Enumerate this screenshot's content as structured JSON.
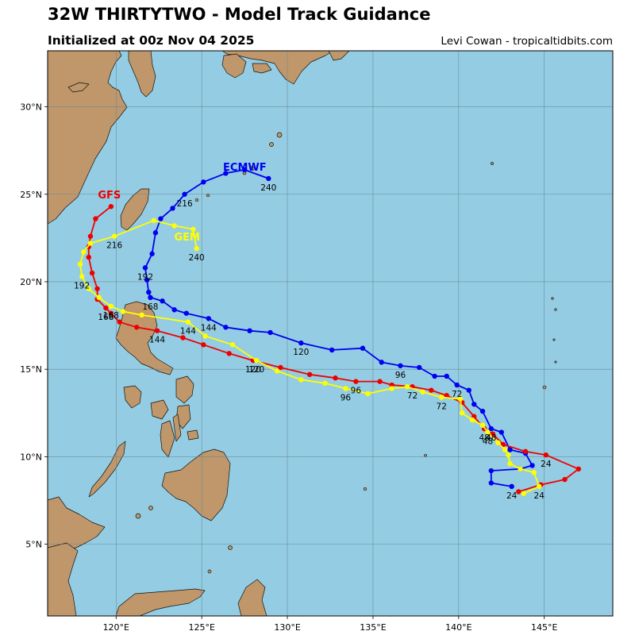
{
  "header": {
    "title": "32W THIRTYTWO - Model Track Guidance",
    "subtitle": "Initialized at 00z Nov 04 2025",
    "credit": "Levi Cowan - tropicaltidbits.com"
  },
  "colors": {
    "ocean": "#94cde3",
    "land": "#bf976b",
    "grid": "#6d8a9a",
    "ecmwf": "#0000ee",
    "gfs": "#ee0000",
    "gem": "#ffff00"
  },
  "axes": {
    "lon_labels": [
      "120°E",
      "125°E",
      "130°E",
      "135°E",
      "140°E",
      "145°E"
    ],
    "lat_labels": [
      "5°N",
      "10°N",
      "15°N",
      "20°N",
      "25°N",
      "30°N"
    ]
  },
  "models": [
    {
      "name": "ECMWF",
      "label": "ECMWF",
      "color": "#0000ee",
      "track": [
        [
          143.1,
          8.3
        ],
        [
          141.9,
          8.5
        ],
        [
          141.9,
          9.2
        ],
        [
          143.6,
          9.3
        ],
        [
          144.3,
          9.5
        ],
        [
          143.9,
          10.2
        ],
        [
          143.0,
          10.4
        ],
        [
          142.5,
          11.4
        ],
        [
          141.9,
          11.6
        ],
        [
          141.4,
          12.6
        ],
        [
          140.9,
          13.0
        ],
        [
          140.6,
          13.8
        ],
        [
          139.9,
          14.1
        ],
        [
          139.3,
          14.6
        ],
        [
          138.6,
          14.6
        ],
        [
          137.7,
          15.1
        ],
        [
          136.6,
          15.2
        ],
        [
          135.5,
          15.4
        ],
        [
          134.4,
          16.2
        ],
        [
          132.6,
          16.1
        ],
        [
          130.8,
          16.5
        ],
        [
          129.0,
          17.1
        ],
        [
          127.8,
          17.2
        ],
        [
          126.4,
          17.4
        ],
        [
          125.4,
          17.9
        ],
        [
          124.1,
          18.2
        ],
        [
          123.4,
          18.4
        ],
        [
          122.7,
          18.9
        ],
        [
          122.0,
          19.1
        ],
        [
          121.9,
          19.4
        ],
        [
          121.8,
          20.1
        ],
        [
          121.7,
          20.8
        ],
        [
          122.1,
          21.6
        ],
        [
          122.3,
          22.8
        ],
        [
          122.6,
          23.6
        ],
        [
          123.3,
          24.2
        ],
        [
          124.0,
          25.0
        ],
        [
          125.1,
          25.7
        ],
        [
          126.4,
          26.2
        ],
        [
          127.5,
          26.4
        ],
        [
          128.9,
          25.9
        ]
      ],
      "hour_labels": [
        {
          "text": "24",
          "lon": 143.1,
          "lat": 8.3
        },
        {
          "text": "48",
          "lon": 141.9,
          "lat": 11.6
        },
        {
          "text": "72",
          "lon": 139.9,
          "lat": 14.1
        },
        {
          "text": "96",
          "lon": 136.6,
          "lat": 15.2
        },
        {
          "text": "120",
          "lon": 130.8,
          "lat": 16.5
        },
        {
          "text": "144",
          "lon": 125.4,
          "lat": 17.9
        },
        {
          "text": "168",
          "lon": 122.0,
          "lat": 19.1
        },
        {
          "text": "192",
          "lon": 121.7,
          "lat": 20.8
        },
        {
          "text": "216",
          "lon": 124.0,
          "lat": 25.0
        },
        {
          "text": "240",
          "lon": 128.9,
          "lat": 25.9
        }
      ]
    },
    {
      "name": "GFS",
      "label": "GFS",
      "color": "#ee0000",
      "track": [
        [
          143.5,
          8.0
        ],
        [
          144.8,
          8.4
        ],
        [
          146.2,
          8.7
        ],
        [
          147.0,
          9.3
        ],
        [
          145.1,
          10.1
        ],
        [
          143.9,
          10.3
        ],
        [
          142.6,
          10.7
        ],
        [
          142.0,
          11.3
        ],
        [
          141.5,
          11.6
        ],
        [
          140.9,
          12.3
        ],
        [
          140.2,
          13.1
        ],
        [
          139.3,
          13.5
        ],
        [
          138.4,
          13.8
        ],
        [
          137.3,
          14.0
        ],
        [
          136.1,
          14.1
        ],
        [
          135.4,
          14.3
        ],
        [
          134.0,
          14.3
        ],
        [
          132.8,
          14.5
        ],
        [
          131.3,
          14.7
        ],
        [
          129.6,
          15.1
        ],
        [
          128.0,
          15.5
        ],
        [
          126.6,
          15.9
        ],
        [
          125.1,
          16.4
        ],
        [
          123.9,
          16.8
        ],
        [
          122.4,
          17.2
        ],
        [
          121.2,
          17.4
        ],
        [
          120.2,
          17.7
        ],
        [
          119.7,
          18.2
        ],
        [
          119.4,
          18.5
        ],
        [
          118.9,
          19.0
        ],
        [
          118.9,
          19.6
        ],
        [
          118.6,
          20.5
        ],
        [
          118.4,
          21.4
        ],
        [
          118.4,
          22.0
        ],
        [
          118.5,
          22.6
        ],
        [
          118.8,
          23.6
        ],
        [
          119.7,
          24.3
        ]
      ],
      "hour_labels": [
        {
          "text": "24",
          "lon": 145.1,
          "lat": 10.1
        },
        {
          "text": "48",
          "lon": 141.5,
          "lat": 11.6
        },
        {
          "text": "72",
          "lon": 137.3,
          "lat": 14.0
        },
        {
          "text": "96",
          "lon": 134.0,
          "lat": 14.3
        },
        {
          "text": "120",
          "lon": 128.0,
          "lat": 15.5
        },
        {
          "text": "144",
          "lon": 122.4,
          "lat": 17.2
        },
        {
          "text": "168",
          "lon": 119.4,
          "lat": 18.5
        }
      ]
    },
    {
      "name": "GEM",
      "label": "GEM",
      "color": "#ffff00",
      "track": [
        [
          143.8,
          7.9
        ],
        [
          144.7,
          8.3
        ],
        [
          144.4,
          9.1
        ],
        [
          143.6,
          9.3
        ],
        [
          143.0,
          9.6
        ],
        [
          142.9,
          10.1
        ],
        [
          142.7,
          10.4
        ],
        [
          142.3,
          10.8
        ],
        [
          141.7,
          11.4
        ],
        [
          141.4,
          11.8
        ],
        [
          140.8,
          12.1
        ],
        [
          140.2,
          12.5
        ],
        [
          140.1,
          13.3
        ],
        [
          139.0,
          13.4
        ],
        [
          137.9,
          13.7
        ],
        [
          137.0,
          14.0
        ],
        [
          136.1,
          13.9
        ],
        [
          134.7,
          13.6
        ],
        [
          133.4,
          13.9
        ],
        [
          132.2,
          14.2
        ],
        [
          130.8,
          14.4
        ],
        [
          129.4,
          14.9
        ],
        [
          128.2,
          15.5
        ],
        [
          126.8,
          16.4
        ],
        [
          125.2,
          16.9
        ],
        [
          124.2,
          17.7
        ],
        [
          121.5,
          18.1
        ],
        [
          120.4,
          18.3
        ],
        [
          119.7,
          18.6
        ],
        [
          119.0,
          19.1
        ],
        [
          118.4,
          19.6
        ],
        [
          118.0,
          20.3
        ],
        [
          117.9,
          21.0
        ],
        [
          118.1,
          21.7
        ],
        [
          118.5,
          22.2
        ],
        [
          119.9,
          22.6
        ],
        [
          122.2,
          23.5
        ],
        [
          123.4,
          23.2
        ],
        [
          124.5,
          23.0
        ],
        [
          124.7,
          21.9
        ]
      ],
      "hour_labels": [
        {
          "text": "24",
          "lon": 144.7,
          "lat": 8.3
        },
        {
          "text": "48",
          "lon": 141.7,
          "lat": 11.4
        },
        {
          "text": "72",
          "lon": 139.0,
          "lat": 13.4
        },
        {
          "text": "96",
          "lon": 133.4,
          "lat": 13.9
        },
        {
          "text": "120",
          "lon": 128.2,
          "lat": 15.5
        },
        {
          "text": "144",
          "lon": 124.2,
          "lat": 17.7
        },
        {
          "text": "168",
          "lon": 119.7,
          "lat": 18.6
        },
        {
          "text": "192",
          "lon": 118.0,
          "lat": 20.3
        },
        {
          "text": "216",
          "lon": 119.9,
          "lat": 22.6
        },
        {
          "text": "240",
          "lon": 124.7,
          "lat": 21.9
        }
      ]
    }
  ]
}
